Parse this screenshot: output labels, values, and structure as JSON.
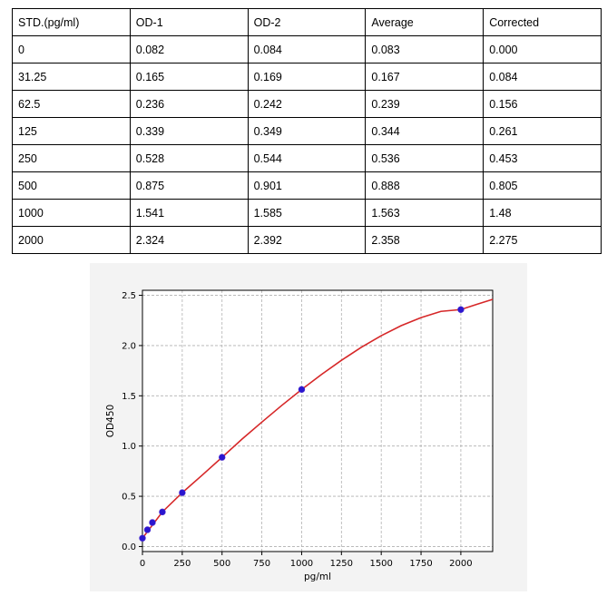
{
  "table": {
    "headers": [
      "STD.(pg/ml)",
      "OD-1",
      "OD-2",
      "Average",
      "Corrected"
    ],
    "rows": [
      [
        "0",
        "0.082",
        "0.084",
        "0.083",
        "0.000"
      ],
      [
        "31.25",
        "0.165",
        "0.169",
        "0.167",
        "0.084"
      ],
      [
        "62.5",
        "0.236",
        "0.242",
        "0.239",
        "0.156"
      ],
      [
        "125",
        "0.339",
        "0.349",
        "0.344",
        "0.261"
      ],
      [
        "250",
        "0.528",
        "0.544",
        "0.536",
        "0.453"
      ],
      [
        "500",
        "0.875",
        "0.901",
        "0.888",
        "0.805"
      ],
      [
        "1000",
        "1.541",
        "1.585",
        "1.563",
        "1.48"
      ],
      [
        "2000",
        "2.324",
        "2.392",
        "2.358",
        "2.275"
      ]
    ]
  },
  "chart_data": {
    "type": "scatter",
    "title": "",
    "xlabel": "pg/ml",
    "ylabel": "OD450",
    "xlim": [
      0,
      2200
    ],
    "ylim": [
      -0.05,
      2.55
    ],
    "xticks": [
      "0",
      "250",
      "500",
      "750",
      "1000",
      "1250",
      "1500",
      "1750",
      "2000"
    ],
    "yticks": [
      "0.0",
      "0.5",
      "1.0",
      "1.5",
      "2.0",
      "2.5"
    ],
    "grid": true,
    "series": [
      {
        "kind": "points",
        "x": [
          0,
          31.25,
          62.5,
          125,
          250,
          500,
          1000,
          2000
        ],
        "y": [
          0.083,
          0.167,
          0.239,
          0.344,
          0.536,
          0.888,
          1.563,
          2.358
        ]
      },
      {
        "kind": "fit-curve",
        "x": [
          0,
          125,
          250,
          375,
          500,
          625,
          750,
          875,
          1000,
          1125,
          1250,
          1375,
          1500,
          1625,
          1750,
          1875,
          2000,
          2100,
          2200
        ],
        "y": [
          0.083,
          0.344,
          0.536,
          0.71,
          0.888,
          1.068,
          1.238,
          1.404,
          1.563,
          1.713,
          1.853,
          1.983,
          2.098,
          2.198,
          2.278,
          2.34,
          2.358,
          2.41,
          2.46
        ]
      }
    ],
    "colors": {
      "points": "#2a16cf",
      "curve": "#d62728",
      "grid": "#b0b0b0"
    }
  }
}
